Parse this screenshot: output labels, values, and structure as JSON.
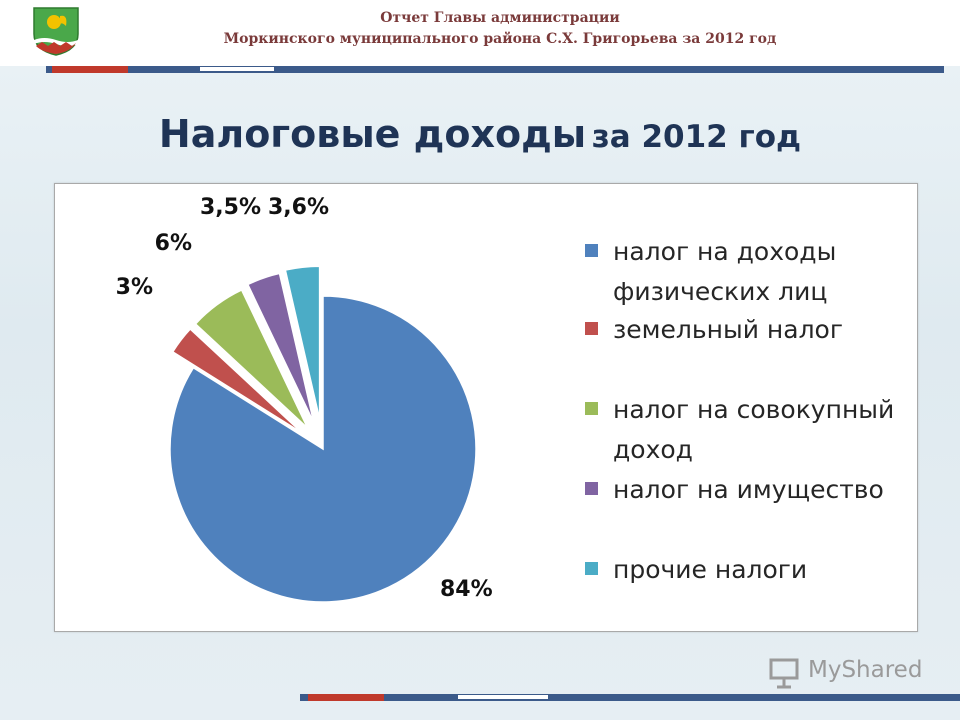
{
  "header": {
    "line1": "Отчет Главы администрации",
    "line2": "Моркинского муниципального района С.Х. Григорьева за 2012 год"
  },
  "slide_title": {
    "main": "Налоговые доходы",
    "suffix": "за 2012 год"
  },
  "watermark": {
    "text": "MyShared"
  },
  "icons": [
    "coat-of-arms-logo",
    "presentation-icon"
  ],
  "colors": {
    "accent_red": "#c0392b",
    "accent_blue": "#3b5a8a",
    "title": "#1f3456"
  },
  "chart_data": {
    "type": "pie",
    "exploded": true,
    "slices": [
      {
        "label": "налог на доходы физических лиц",
        "value": 84,
        "data_label": "84%",
        "color": "#4f81bd"
      },
      {
        "label": "земельный налог",
        "value": 3,
        "data_label": "3%",
        "color": "#c0504d"
      },
      {
        "label": "налог на совокупный доход",
        "value": 6,
        "data_label": "6%",
        "color": "#9bbb59"
      },
      {
        "label": "налог на имущество",
        "value": 3.5,
        "data_label": "3,5%",
        "color": "#8064a2"
      },
      {
        "label": "прочие налоги",
        "value": 3.6,
        "data_label": "3,6%",
        "color": "#4bacc6"
      }
    ],
    "legend": {
      "placement": "right",
      "entries": [
        {
          "line1": "налог на доходы",
          "line2": "физических лиц",
          "color": "#4f81bd"
        },
        {
          "line1": "земельный налог",
          "line2": "",
          "color": "#c0504d"
        },
        {
          "line1": "налог на совокупный",
          "line2": "доход",
          "color": "#9bbb59"
        },
        {
          "line1": "налог на имущество",
          "line2": "",
          "color": "#8064a2"
        },
        {
          "line1": "прочие налоги",
          "line2": "",
          "color": "#4bacc6"
        }
      ]
    }
  }
}
